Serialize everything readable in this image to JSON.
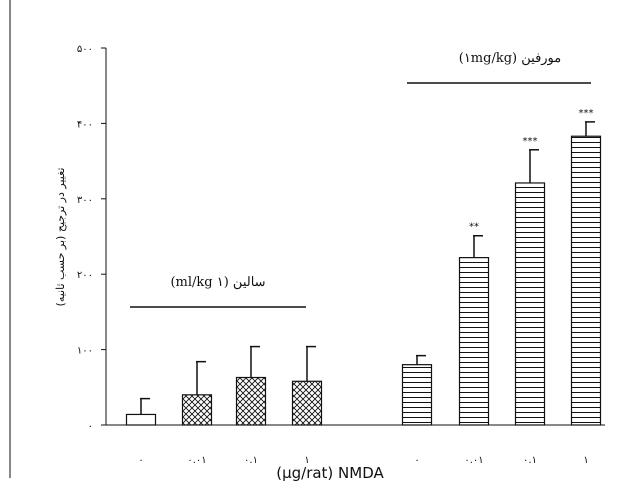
{
  "chart_data": {
    "type": "bar",
    "xlabel": "(µg/rat) NMDA",
    "ylabel": "تغییر در ترجیح (بر حسب ثانیه)",
    "ylim": [
      0,
      500
    ],
    "y_tick_labels": [
      "۰",
      "۱۰۰",
      "۲۰۰",
      "۳۰۰",
      "۴۰۰",
      "۵۰۰"
    ],
    "y_tick_values": [
      0,
      100,
      200,
      300,
      400,
      500
    ],
    "groups": [
      {
        "label": "سالین (۱ ml/kg)",
        "categories": [
          "۰",
          "۰.۰۱",
          "۰.۱",
          "۱"
        ],
        "values": [
          14,
          40,
          63,
          58
        ],
        "errors": [
          21,
          44,
          41,
          46
        ],
        "significance": [
          "",
          "",
          "",
          ""
        ],
        "fills": [
          "white",
          "crosshatch",
          "crosshatch",
          "crosshatch"
        ]
      },
      {
        "label": "مورفین (۱mg/kg)",
        "categories": [
          "۰",
          "۰.۰۱",
          "۰.۱",
          "۱"
        ],
        "values": [
          80,
          222,
          321,
          383
        ],
        "errors": [
          12,
          29,
          44,
          19
        ],
        "significance": [
          "",
          "**",
          "***",
          "***"
        ],
        "fills": [
          "horizontal",
          "horizontal",
          "horizontal",
          "horizontal"
        ]
      }
    ],
    "colors": {
      "ink": "#111111",
      "background": "#ffffff"
    }
  }
}
